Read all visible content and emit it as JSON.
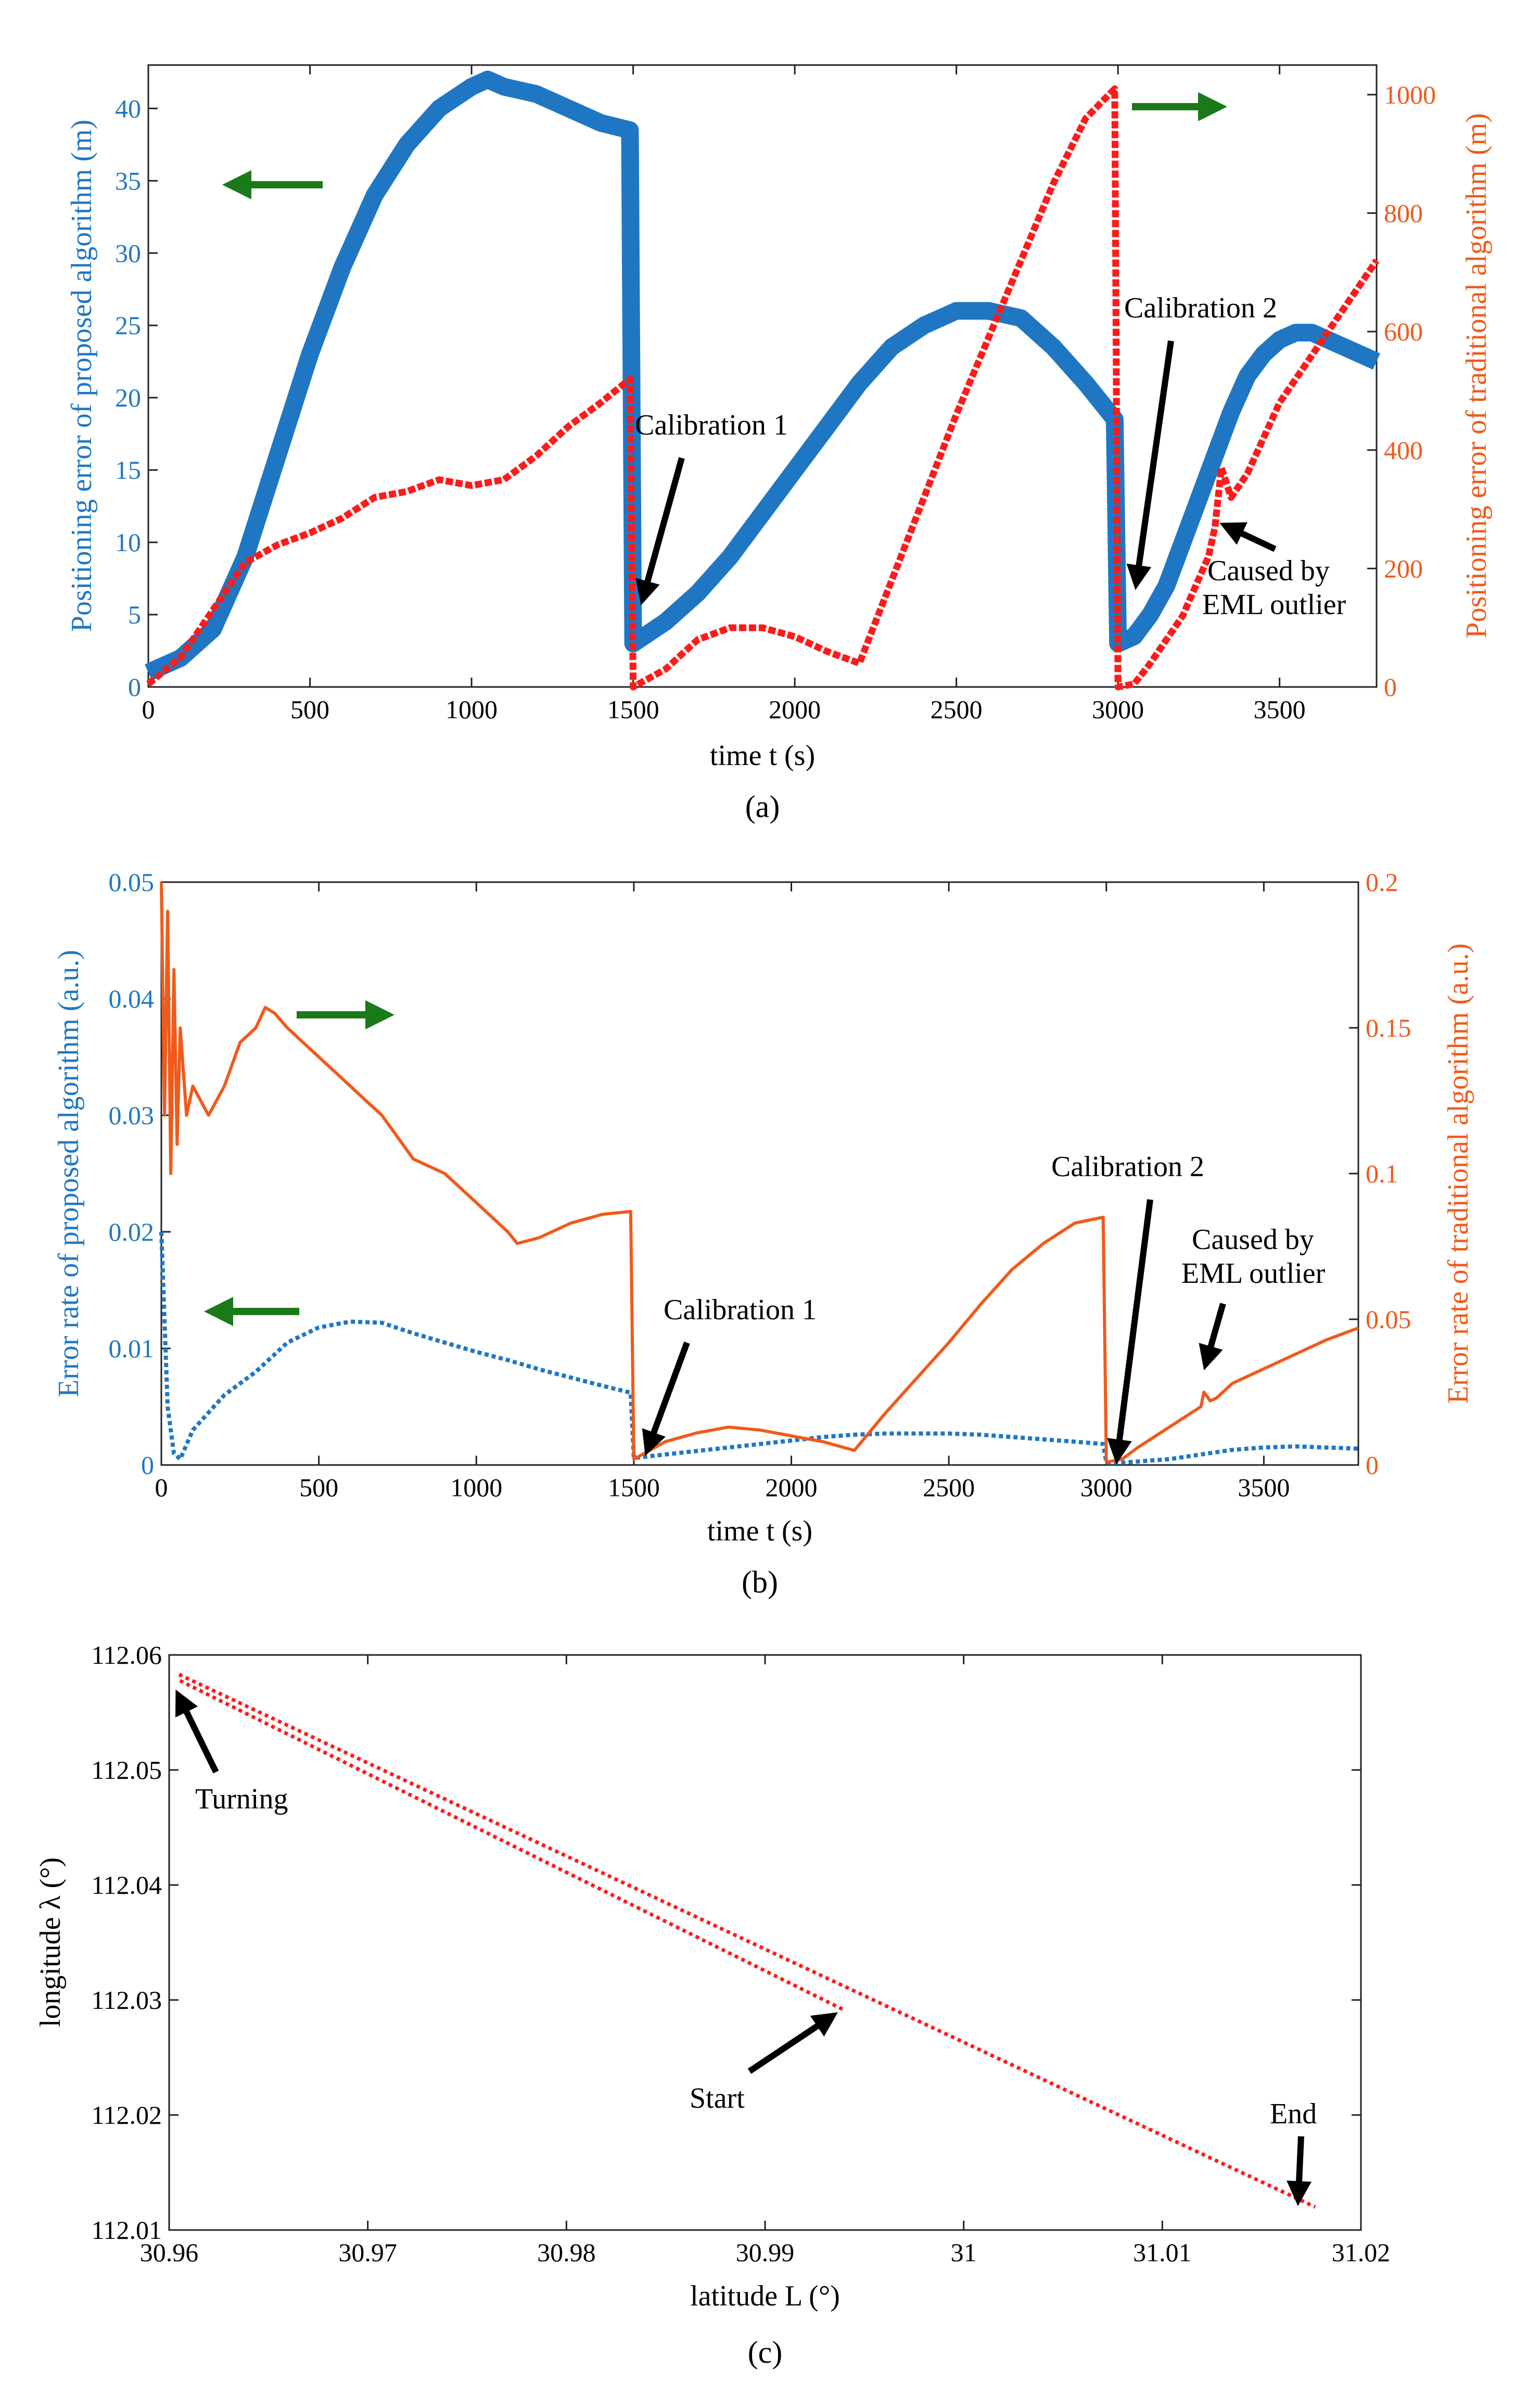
{
  "colors": {
    "blue": "#1f77c4",
    "blue_dark": "#1f6fb5",
    "red": "#ff1a1a",
    "orange": "#f05a1a",
    "green": "#1a7a1a",
    "black": "#000000"
  },
  "chart_data": [
    {
      "type": "line",
      "panel": "a",
      "caption": "(a)",
      "xlabel": "time t (s)",
      "ylabel_left": "Positioning error of proposed algorithm (m)",
      "ylabel_right": "Positioning error of traditional algorithm (m)",
      "xlim": [
        0,
        3800
      ],
      "ylim_left": [
        0,
        43
      ],
      "ylim_right": [
        0,
        1050
      ],
      "xticks": [
        "0",
        "500",
        "1000",
        "1500",
        "2000",
        "2500",
        "3000",
        "3500"
      ],
      "yticks_left": [
        "0",
        "5",
        "10",
        "15",
        "20",
        "25",
        "30",
        "35",
        "40"
      ],
      "yticks_right": [
        "0",
        "200",
        "400",
        "600",
        "800",
        "1000"
      ],
      "series": [
        {
          "name": "proposed algorithm",
          "axis": "left",
          "x": [
            0,
            100,
            200,
            300,
            400,
            500,
            600,
            700,
            800,
            900,
            1000,
            1050,
            1100,
            1200,
            1300,
            1400,
            1490,
            1500,
            1600,
            1700,
            1800,
            1900,
            2000,
            2100,
            2200,
            2300,
            2400,
            2500,
            2600,
            2700,
            2800,
            2900,
            2990,
            3000,
            3050,
            3100,
            3150,
            3200,
            3250,
            3300,
            3350,
            3400,
            3450,
            3500,
            3550,
            3600,
            3650,
            3700,
            3800
          ],
          "y": [
            1,
            2,
            4,
            9,
            16,
            23,
            29,
            34,
            37.5,
            40,
            41.5,
            42,
            41.5,
            41,
            40,
            39,
            38.5,
            3,
            4.5,
            6.5,
            9,
            12,
            15,
            18,
            21,
            23.5,
            25,
            26,
            26,
            25.5,
            23.5,
            21,
            18.5,
            3,
            3.5,
            5,
            7,
            10,
            13,
            16,
            19,
            21.5,
            23,
            24,
            24.5,
            24.5,
            24,
            23.5,
            22.5
          ]
        },
        {
          "name": "traditional algorithm",
          "axis": "right",
          "x": [
            0,
            100,
            200,
            300,
            400,
            500,
            600,
            700,
            800,
            900,
            950,
            1000,
            1100,
            1200,
            1300,
            1400,
            1490,
            1500,
            1600,
            1700,
            1800,
            1900,
            2000,
            2100,
            2200,
            2300,
            2400,
            2500,
            2600,
            2700,
            2800,
            2900,
            2990,
            3000,
            3050,
            3100,
            3200,
            3280,
            3300,
            3320,
            3350,
            3400,
            3500,
            3600,
            3700,
            3800
          ],
          "y": [
            5,
            50,
            130,
            210,
            240,
            260,
            285,
            320,
            330,
            350,
            345,
            340,
            350,
            390,
            440,
            480,
            520,
            0,
            30,
            80,
            100,
            100,
            85,
            60,
            40,
            180,
            320,
            460,
            590,
            720,
            850,
            960,
            1010,
            0,
            5,
            40,
            120,
            220,
            270,
            370,
            320,
            360,
            480,
            560,
            640,
            720
          ]
        }
      ],
      "annotations": [
        "Calibration 1",
        "Calibration 2",
        "Caused by",
        "EML outlier"
      ]
    },
    {
      "type": "line",
      "panel": "b",
      "caption": "(b)",
      "xlabel": "time t (s)",
      "ylabel_left": "Error rate of proposed algorithm (a.u.)",
      "ylabel_right": "Error rate of traditional algorithm (a.u.)",
      "xlim": [
        0,
        3800
      ],
      "ylim_left": [
        0,
        0.05
      ],
      "ylim_right": [
        0,
        0.2
      ],
      "xticks": [
        "0",
        "500",
        "1000",
        "1500",
        "2000",
        "2500",
        "3000",
        "3500"
      ],
      "yticks_left": [
        "0",
        "0.01",
        "0.02",
        "0.03",
        "0.04",
        "0.05"
      ],
      "yticks_right": [
        "0",
        "0.05",
        "0.1",
        "0.15",
        "0.2"
      ],
      "series": [
        {
          "name": "proposed algorithm",
          "axis": "left",
          "x": [
            0,
            20,
            40,
            60,
            100,
            200,
            300,
            400,
            500,
            600,
            700,
            800,
            900,
            1000,
            1100,
            1200,
            1300,
            1400,
            1490,
            1500,
            1600,
            1700,
            1800,
            1900,
            2000,
            2100,
            2200,
            2300,
            2400,
            2500,
            2600,
            2700,
            2800,
            2900,
            2990,
            3000,
            3050,
            3100,
            3200,
            3300,
            3400,
            3500,
            3600,
            3700,
            3800
          ],
          "y": [
            0.02,
            0.005,
            0.001,
            0.0005,
            0.003,
            0.006,
            0.008,
            0.0105,
            0.0118,
            0.0123,
            0.0122,
            0.0113,
            0.0105,
            0.0097,
            0.009,
            0.0082,
            0.0075,
            0.0068,
            0.0062,
            0.0006,
            0.0009,
            0.0012,
            0.0015,
            0.0018,
            0.0021,
            0.0024,
            0.0026,
            0.0027,
            0.0027,
            0.0027,
            0.0026,
            0.0024,
            0.0022,
            0.002,
            0.0018,
            0.0002,
            0.0002,
            0.0003,
            0.0005,
            0.0009,
            0.0013,
            0.0015,
            0.0016,
            0.0015,
            0.0014
          ]
        },
        {
          "name": "traditional algorithm",
          "axis": "right",
          "x": [
            0,
            10,
            20,
            30,
            40,
            50,
            60,
            80,
            100,
            150,
            200,
            250,
            300,
            330,
            360,
            400,
            500,
            600,
            700,
            800,
            900,
            1000,
            1100,
            1130,
            1200,
            1300,
            1400,
            1490,
            1500,
            1550,
            1600,
            1700,
            1800,
            1900,
            2000,
            2100,
            2200,
            2300,
            2400,
            2500,
            2600,
            2700,
            2800,
            2900,
            2990,
            3000,
            3050,
            3100,
            3200,
            3300,
            3310,
            3330,
            3350,
            3400,
            3500,
            3600,
            3700,
            3800
          ],
          "y": [
            0.2,
            0.12,
            0.19,
            0.1,
            0.17,
            0.11,
            0.15,
            0.12,
            0.13,
            0.12,
            0.13,
            0.145,
            0.15,
            0.157,
            0.155,
            0.15,
            0.14,
            0.13,
            0.12,
            0.105,
            0.1,
            0.09,
            0.08,
            0.076,
            0.078,
            0.083,
            0.086,
            0.087,
            0.002,
            0.005,
            0.008,
            0.011,
            0.013,
            0.012,
            0.01,
            0.008,
            0.005,
            0.018,
            0.03,
            0.042,
            0.055,
            0.067,
            0.076,
            0.083,
            0.085,
            0.001,
            0.002,
            0.006,
            0.013,
            0.02,
            0.025,
            0.022,
            0.023,
            0.028,
            0.033,
            0.038,
            0.043,
            0.047
          ]
        }
      ],
      "annotations": [
        "Calibration 1",
        "Calibration 2",
        "Caused by",
        "EML outlier"
      ]
    },
    {
      "type": "scatter",
      "panel": "c",
      "caption": "(c)",
      "xlabel": "latitude L (°)",
      "ylabel": "longitude λ (°)",
      "xlim": [
        30.96,
        31.02
      ],
      "ylim": [
        112.01,
        112.06
      ],
      "xticks": [
        "30.96",
        "30.97",
        "30.98",
        "30.99",
        "31",
        "31.01",
        "31.02"
      ],
      "yticks": [
        "112.01",
        "112.02",
        "112.03",
        "112.04",
        "112.05",
        "112.06"
      ],
      "series": [
        {
          "name": "track outbound",
          "x": [
            30.9939,
            30.9605
          ],
          "y": [
            112.0292,
            112.0578
          ]
        },
        {
          "name": "track return",
          "x": [
            30.9605,
            31.0177
          ],
          "y": [
            112.0583,
            112.012
          ]
        }
      ],
      "annotations": [
        "Turning",
        "Start",
        "End"
      ]
    }
  ]
}
